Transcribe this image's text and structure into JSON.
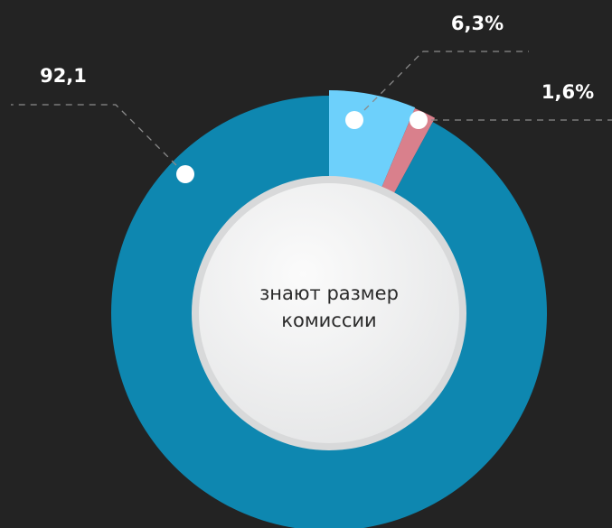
{
  "chart_data": {
    "type": "pie",
    "center_label": "знают размер комиссии",
    "series": [
      {
        "values": [
          6.3,
          1.6,
          92.1
        ],
        "value_labels": [
          "6,3%",
          "1,6%",
          "92,1"
        ],
        "colors": [
          "#6dd0fb",
          "#d9808c",
          "#0e87b0"
        ]
      }
    ]
  }
}
